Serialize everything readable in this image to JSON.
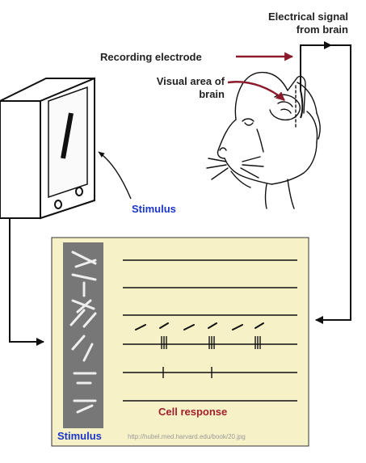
{
  "labels": {
    "electrical_signal_line1": "Electrical signal",
    "electrical_signal_line2": "from brain",
    "recording_electrode": "Recording electrode",
    "visual_area_line1": "Visual area of",
    "visual_area_line2": "brain",
    "stimulus_top": "Stimulus",
    "stimulus_panel": "Stimulus",
    "cell_response": "Cell response",
    "source_url": "http://hubel.med.harvard.edu/book/20.jpg"
  },
  "colors": {
    "arrow_red": "#8b1a2c",
    "label_blue": "#1a35c8",
    "response_red": "#a0202c",
    "panel_bg": "#f7f1c8",
    "stimulus_strip": "#777777",
    "ink": "#111111"
  },
  "response_traces": [
    {
      "stimulus_angle": 80,
      "spikes": 0
    },
    {
      "stimulus_angle": 60,
      "spikes": 0
    },
    {
      "stimulus_angle": 40,
      "spikes": 0
    },
    {
      "stimulus_angle": 30,
      "spikes": 14
    },
    {
      "stimulus_angle": 20,
      "spikes": 2
    },
    {
      "stimulus_angle": 0,
      "spikes": 0
    }
  ]
}
